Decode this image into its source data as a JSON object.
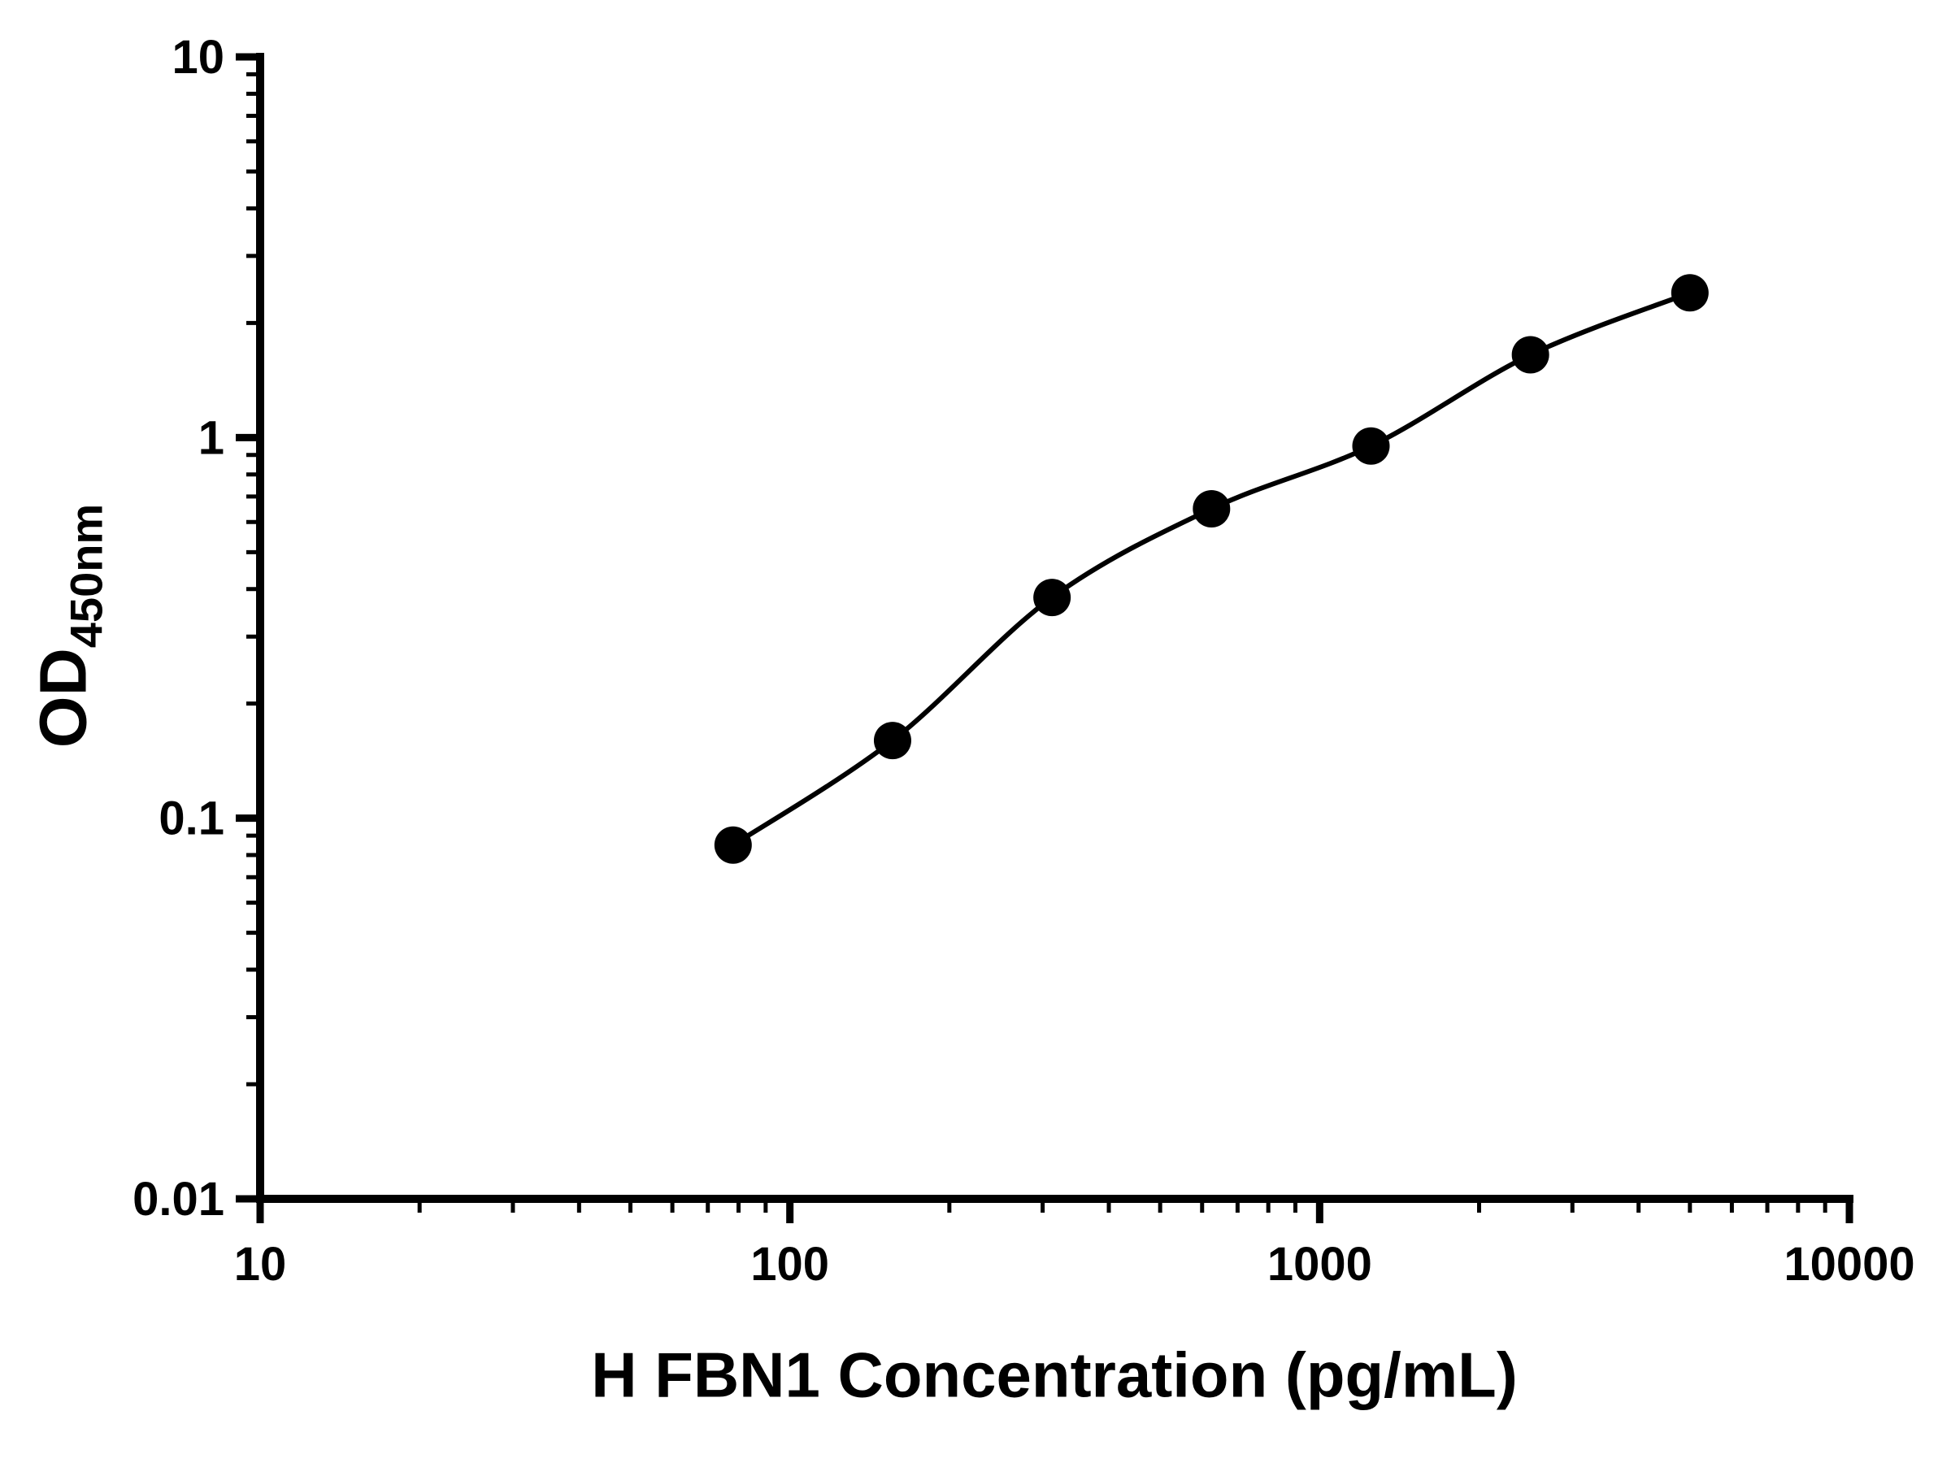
{
  "chart_data": {
    "type": "scatter",
    "title": "",
    "xlabel": "H FBN1 Concentration (pg/mL)",
    "ylabel_main": "OD",
    "ylabel_sub": "450nm",
    "x_scale": "log",
    "y_scale": "log",
    "xlim": [
      10,
      10000
    ],
    "ylim": [
      0.01,
      10
    ],
    "grid": false,
    "legend": false,
    "background": "#ffffff",
    "axis_color": "#000000",
    "marker_color": "#000000",
    "line_color": "#000000",
    "x": [
      78.125,
      156.25,
      312.5,
      625,
      1250,
      2500,
      5000
    ],
    "y": [
      0.085,
      0.16,
      0.38,
      0.65,
      0.95,
      1.65,
      2.4
    ],
    "x_ticks": [
      {
        "value": 10,
        "label": "10"
      },
      {
        "value": 100,
        "label": "100"
      },
      {
        "value": 1000,
        "label": "1000"
      },
      {
        "value": 10000,
        "label": "10000"
      }
    ],
    "y_ticks": [
      {
        "value": 10,
        "label": "10"
      },
      {
        "value": 1,
        "label": "1"
      },
      {
        "value": 0.1,
        "label": "0.1"
      },
      {
        "value": 0.01,
        "label": "0.01"
      }
    ]
  }
}
